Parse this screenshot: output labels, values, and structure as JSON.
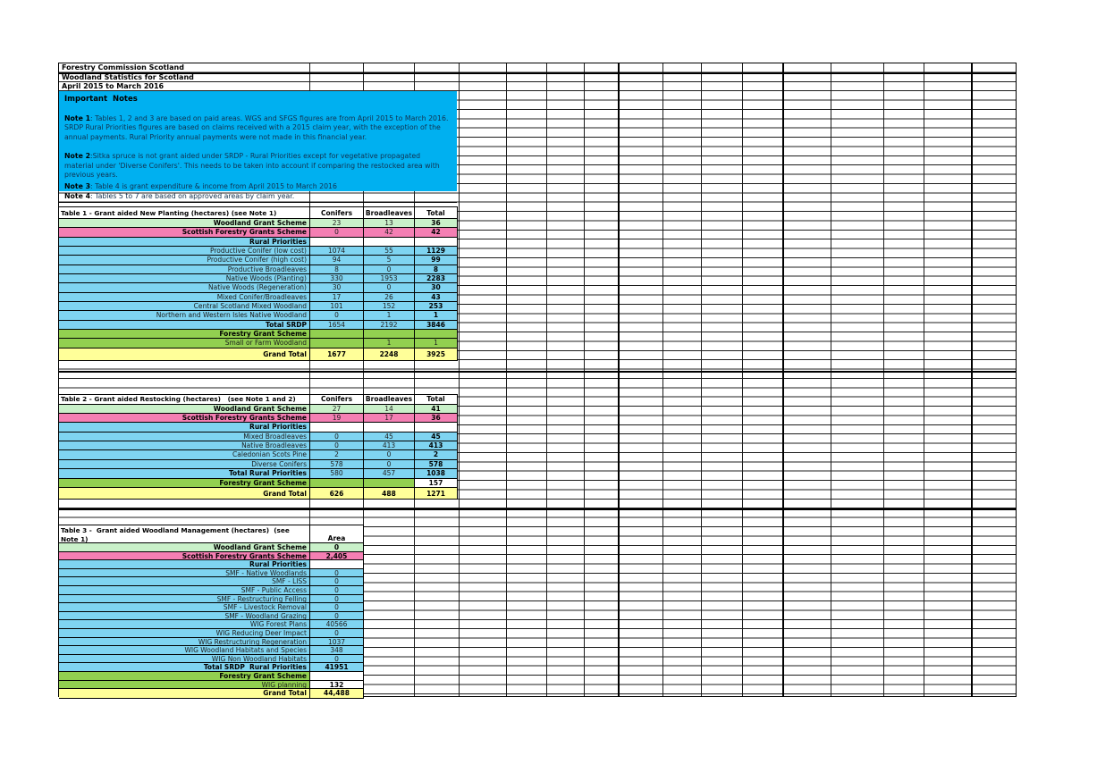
{
  "titles": [
    "Forestry Commission Scotland",
    "Woodland Statistics for Scotland",
    "April 2015 to March 2016"
  ],
  "notes": {
    "heading": "Important  Notes",
    "items": [
      {
        "label": "Note 1",
        "text": ": Tables 1, 2 and 3 are based on paid areas. WGS and SFGS figures are from April 2015 to March 2016. SRDP Rural Priorities figures are based on claims received with a 2015 claim year, with the exception of the annual payments. Rural Priority annual payments were not made in this financial year."
      },
      {
        "label": "Note 2",
        "text": ":Sitka spruce is not grant aided under SRDP - Rural Priorities except for vegetative propagated material under 'Diverse Conifers'. This needs to be taken into account if comparing the restocked area with previous years."
      },
      {
        "label": "Note 3",
        "text": ": Table 4 is grant expenditure & income from April 2015 to March 2016"
      },
      {
        "label": "Note 4",
        "text": ": Tables 5 to 7 are based on approved areas by claim year."
      }
    ]
  },
  "colors": {
    "notes_bg": "#00b0f0",
    "pale_green": "#c9f0c9",
    "pink": "#f47fb3",
    "light_blue": "#7fd4f1",
    "bright_green": "#92d050",
    "yellow": "#ffff99",
    "white": "#ffffff"
  },
  "tables": [
    {
      "id": "table1-grant-aided-new-planting",
      "title": "Table 1 - Grant aided New Planting (hectares) (see Note 1)",
      "title2": "",
      "columns": [
        "Conifers",
        "Broadleaves",
        "Total"
      ],
      "rows": [
        {
          "label": "Woodland Grant Scheme",
          "labelBold": true,
          "bg": "pale_green",
          "cells": [
            {
              "v": "23"
            },
            {
              "v": "13"
            },
            {
              "v": "36",
              "bold": true
            }
          ]
        },
        {
          "label": "Scottish Forestry Grants Scheme",
          "labelBold": true,
          "bg": "pink",
          "cells": [
            {
              "v": "0"
            },
            {
              "v": "42"
            },
            {
              "v": "42",
              "bold": true
            }
          ]
        },
        {
          "label": "Rural Priorities",
          "labelBold": true,
          "bg": "light_blue",
          "cells": [
            {
              "v": "",
              "bg": "white"
            },
            {
              "v": "",
              "bg": "white"
            },
            {
              "v": "",
              "bg": "white"
            }
          ]
        },
        {
          "label": "Productive Conifer (low cost)",
          "bg": "light_blue",
          "cells": [
            {
              "v": "1074"
            },
            {
              "v": "55"
            },
            {
              "v": "1129",
              "bold": true
            }
          ]
        },
        {
          "label": "Productive Conifer (high cost)",
          "bg": "light_blue",
          "cells": [
            {
              "v": "94"
            },
            {
              "v": "5"
            },
            {
              "v": "99",
              "bold": true
            }
          ]
        },
        {
          "label": "Productive Broadleaves",
          "bg": "light_blue",
          "cells": [
            {
              "v": "8"
            },
            {
              "v": "0"
            },
            {
              "v": "8",
              "bold": true
            }
          ]
        },
        {
          "label": "Native Woods (Planting)",
          "bg": "light_blue",
          "cells": [
            {
              "v": "330"
            },
            {
              "v": "1953"
            },
            {
              "v": "2283",
              "bold": true
            }
          ]
        },
        {
          "label": "Native Woods (Regeneration)",
          "bg": "light_blue",
          "cells": [
            {
              "v": "30"
            },
            {
              "v": "0"
            },
            {
              "v": "30",
              "bold": true
            }
          ]
        },
        {
          "label": "Mixed Conifer/Broadleaves",
          "bg": "light_blue",
          "cells": [
            {
              "v": "17"
            },
            {
              "v": "26"
            },
            {
              "v": "43",
              "bold": true
            }
          ]
        },
        {
          "label": "Central Scotland Mixed Woodland",
          "bg": "light_blue",
          "cells": [
            {
              "v": "101"
            },
            {
              "v": "152"
            },
            {
              "v": "253",
              "bold": true
            }
          ]
        },
        {
          "label": "Northern and Western Isles Native Woodland",
          "bg": "light_blue",
          "cells": [
            {
              "v": "0"
            },
            {
              "v": "1"
            },
            {
              "v": "1",
              "bold": true
            }
          ]
        },
        {
          "label": "Total SRDP",
          "labelBold": true,
          "bg": "light_blue",
          "cells": [
            {
              "v": "1654"
            },
            {
              "v": "2192"
            },
            {
              "v": "3846",
              "bold": true
            }
          ]
        },
        {
          "label": "Forestry Grant Scheme",
          "labelBold": true,
          "bg": "bright_green",
          "cells": [
            {
              "v": ""
            },
            {
              "v": ""
            },
            {
              "v": ""
            }
          ]
        },
        {
          "label": "Small or Farm Woodland",
          "bg": "bright_green",
          "cells": [
            {
              "v": ""
            },
            {
              "v": "1"
            },
            {
              "v": "1"
            }
          ]
        },
        {
          "label": "Grand Total",
          "labelBold": true,
          "grand": true,
          "bg": "yellow",
          "cells": [
            {
              "v": "1677",
              "bold": true
            },
            {
              "v": "2248",
              "bold": true
            },
            {
              "v": "3925",
              "bold": true
            }
          ]
        }
      ]
    },
    {
      "id": "table2-grant-aided-restocking",
      "title": "Table 2 - Grant aided Restocking (hectares)   (see Note 1 and 2)",
      "title2": "",
      "columns": [
        "Conifers",
        "Broadleaves",
        "Total"
      ],
      "rows": [
        {
          "label": "Woodland Grant Scheme",
          "labelBold": true,
          "bg": "pale_green",
          "cells": [
            {
              "v": "27"
            },
            {
              "v": "14"
            },
            {
              "v": "41",
              "bold": true
            }
          ]
        },
        {
          "label": "Scottish Forestry Grants Scheme",
          "labelBold": true,
          "bg": "pink",
          "cells": [
            {
              "v": "19"
            },
            {
              "v": "17"
            },
            {
              "v": "36",
              "bold": true
            }
          ]
        },
        {
          "label": "Rural Priorities",
          "labelBold": true,
          "bg": "light_blue",
          "cells": [
            {
              "v": "",
              "bg": "white"
            },
            {
              "v": "",
              "bg": "white"
            },
            {
              "v": "",
              "bg": "white"
            }
          ]
        },
        {
          "label": "Mixed Broadleaves",
          "bg": "light_blue",
          "cells": [
            {
              "v": "0"
            },
            {
              "v": "45"
            },
            {
              "v": "45",
              "bold": true
            }
          ]
        },
        {
          "label": "Native Broadleaves",
          "bg": "light_blue",
          "cells": [
            {
              "v": "0"
            },
            {
              "v": "413"
            },
            {
              "v": "413",
              "bold": true
            }
          ]
        },
        {
          "label": "Caledonian Scots Pine",
          "bg": "light_blue",
          "cells": [
            {
              "v": "2"
            },
            {
              "v": "0"
            },
            {
              "v": "2",
              "bold": true
            }
          ]
        },
        {
          "label": "Diverse Conifers",
          "bg": "light_blue",
          "cells": [
            {
              "v": "578"
            },
            {
              "v": "0"
            },
            {
              "v": "578",
              "bold": true
            }
          ]
        },
        {
          "label": "Total Rural Priorities",
          "labelBold": true,
          "bg": "light_blue",
          "cells": [
            {
              "v": "580"
            },
            {
              "v": "457"
            },
            {
              "v": "1038",
              "bold": true
            }
          ]
        },
        {
          "label": "Forestry Grant Scheme",
          "labelBold": true,
          "bg": "bright_green",
          "cells": [
            {
              "v": ""
            },
            {
              "v": ""
            },
            {
              "v": "157",
              "bold": true,
              "bg": "white"
            }
          ]
        },
        {
          "label": "Grand Total",
          "labelBold": true,
          "grand": true,
          "bg": "yellow",
          "cells": [
            {
              "v": "626",
              "bold": true
            },
            {
              "v": "488",
              "bold": true
            },
            {
              "v": "1271",
              "bold": true
            }
          ]
        }
      ]
    },
    {
      "id": "table3-grant-aided-woodland-management",
      "title": "Table 3 -  Grant aided Woodland Management (hectares)  (see",
      "title2": "Note 1)",
      "columns": [
        "Area"
      ],
      "rows": [
        {
          "label": "Woodland Grant Scheme",
          "labelBold": true,
          "bg": "pale_green",
          "cells": [
            {
              "v": "0",
              "bold": true
            }
          ]
        },
        {
          "label": "Scottish Forestry Grants Scheme",
          "labelBold": true,
          "bg": "pink",
          "cells": [
            {
              "v": "2,405",
              "bold": true
            }
          ]
        },
        {
          "label": "Rural Priorities",
          "labelBold": true,
          "bg": "light_blue",
          "cells": [
            {
              "v": "",
              "bg": "white"
            }
          ]
        },
        {
          "label": "SMF - Native Woodlands",
          "bg": "light_blue",
          "cells": [
            {
              "v": "0"
            }
          ]
        },
        {
          "label": "SMF - LISS",
          "bg": "light_blue",
          "cells": [
            {
              "v": "0"
            }
          ]
        },
        {
          "label": "SMF - Public Access",
          "bg": "light_blue",
          "cells": [
            {
              "v": "0"
            }
          ]
        },
        {
          "label": "SMF - Restructuring Felling",
          "bg": "light_blue",
          "cells": [
            {
              "v": "0"
            }
          ]
        },
        {
          "label": "SMF - Livestock Removal",
          "bg": "light_blue",
          "cells": [
            {
              "v": "0"
            }
          ]
        },
        {
          "label": "SMF - Woodland Grazing",
          "bg": "light_blue",
          "cells": [
            {
              "v": "0"
            }
          ]
        },
        {
          "label": "WIG Forest Plans",
          "bg": "light_blue",
          "cells": [
            {
              "v": "40566"
            }
          ]
        },
        {
          "label": "WIG Reducing Deer Impact",
          "bg": "light_blue",
          "cells": [
            {
              "v": "0"
            }
          ]
        },
        {
          "label": "WIG Restructuring Regeneration",
          "bg": "light_blue",
          "cells": [
            {
              "v": "1037"
            }
          ]
        },
        {
          "label": "WIG Woodland Habitats and Species",
          "bg": "light_blue",
          "cells": [
            {
              "v": "348"
            }
          ]
        },
        {
          "label": "WIG Non Woodland Habitats",
          "bg": "light_blue",
          "cells": [
            {
              "v": "0"
            }
          ]
        },
        {
          "label": "Total SRDP  Rural Priorities",
          "labelBold": true,
          "bg": "light_blue",
          "cells": [
            {
              "v": "41951",
              "bold": true
            }
          ]
        },
        {
          "label": "Forestry Grant Scheme",
          "labelBold": true,
          "bg": "bright_green",
          "cells": [
            {
              "v": "",
              "bg": "white"
            }
          ]
        },
        {
          "label": "WIG planning",
          "bg": "bright_green",
          "cells": [
            {
              "v": "132",
              "bold": true,
              "bg": "white"
            }
          ]
        },
        {
          "label": "Grand Total",
          "labelBold": true,
          "grand": true,
          "bg": "yellow",
          "cells": [
            {
              "v": "44,488",
              "bold": true
            }
          ]
        }
      ]
    }
  ]
}
